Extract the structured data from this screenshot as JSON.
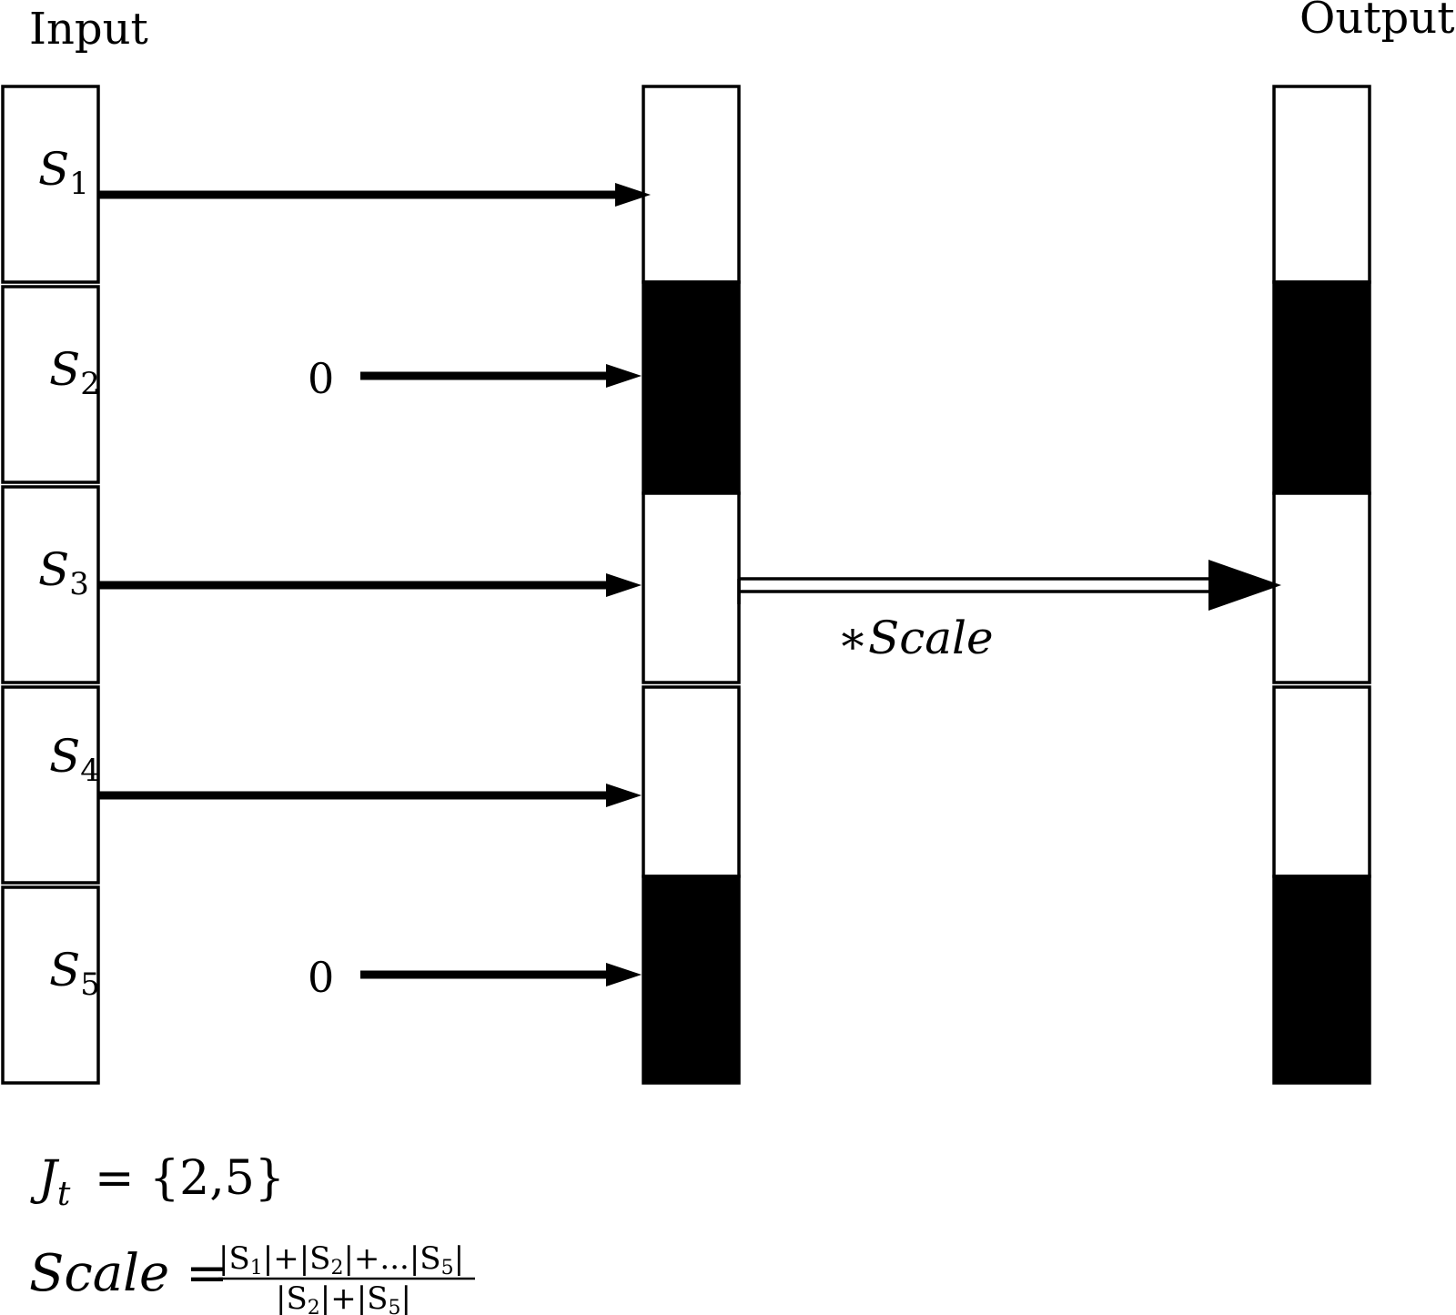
{
  "titles": {
    "input": "Input",
    "output": "Output"
  },
  "input_cells": [
    {
      "base": "S",
      "sub": "1"
    },
    {
      "base": "S",
      "sub": "2"
    },
    {
      "base": "S",
      "sub": "3"
    },
    {
      "base": "S",
      "sub": "4"
    },
    {
      "base": "S",
      "sub": "5"
    }
  ],
  "masked_cells": [
    2,
    5
  ],
  "zero_label": "0",
  "scale_arrow_label": "∗Scale",
  "formulas": {
    "jt_lhs": "J",
    "jt_sub": "t",
    "jt_rhs": "= {2,5}",
    "scale_lhs": "Scale =",
    "scale_num_parts": [
      "|S",
      "1",
      "|+|S",
      "2",
      "|+...|S",
      "5",
      "|"
    ],
    "scale_den_parts": [
      "|S",
      "2",
      "|+|S",
      "5",
      "|"
    ]
  },
  "colors": {
    "ink": "#000000",
    "paper": "#ffffff"
  }
}
